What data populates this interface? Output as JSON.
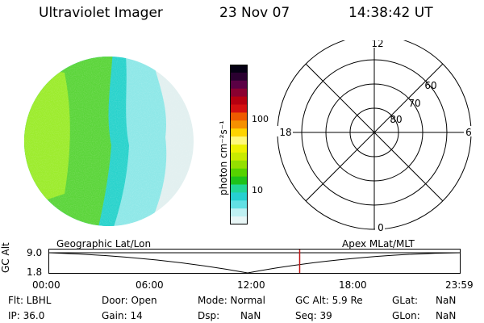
{
  "header": {
    "instrument": "Ultraviolet Imager",
    "date": "23 Nov 07",
    "time": "14:38:42 UT"
  },
  "colorbar": {
    "unit_label": "photon cm⁻²s⁻¹",
    "tick_labels": [
      "100",
      "10"
    ],
    "colors": [
      "#050014",
      "#2a0030",
      "#5a0044",
      "#8a0030",
      "#b60010",
      "#d41010",
      "#ee5a00",
      "#f59000",
      "#ffd400",
      "#fff87a",
      "#eef000",
      "#c8ea00",
      "#94e000",
      "#56d200",
      "#1ec21a",
      "#22d696",
      "#26d0d0",
      "#62e0e4",
      "#bff0f2",
      "#e8f6f6"
    ]
  },
  "image": {
    "colors": {
      "green_light": "#9cec2c",
      "green": "#5bd53a",
      "cyan": "#29d3cc",
      "cyan_light": "#8ee8e8",
      "pale": "#e2f0f0"
    }
  },
  "polar": {
    "mlt_labels": {
      "top": "12",
      "bottom": "0",
      "left": "18",
      "right": "6"
    },
    "lat_labels": [
      "60",
      "70",
      "80"
    ]
  },
  "timeline": {
    "ylabel": "GC Alt",
    "left_label": "Geographic Lat/Lon",
    "right_label": "Apex MLat/MLT",
    "y_ticks": [
      "9.0",
      "1.8"
    ],
    "x_ticks": [
      "00:00",
      "06:00",
      "12:00",
      "18:00",
      "23:59"
    ],
    "marker_color": "#c01818",
    "current_time_fraction": 0.61
  },
  "info": {
    "filter": "Flt: LBHL",
    "ip": "IP: 36.0",
    "door": "Door: Open",
    "gain": "Gain: 14",
    "mode": "Mode: Normal",
    "dsp_label": "Dsp:",
    "dsp_value": "NaN",
    "gc_alt": "GC Alt: 5.9 Re",
    "seq": "Seq: 39",
    "glat_label": "GLat:",
    "glat_value": "NaN",
    "glon_label": "GLon:",
    "glon_value": "NaN"
  }
}
